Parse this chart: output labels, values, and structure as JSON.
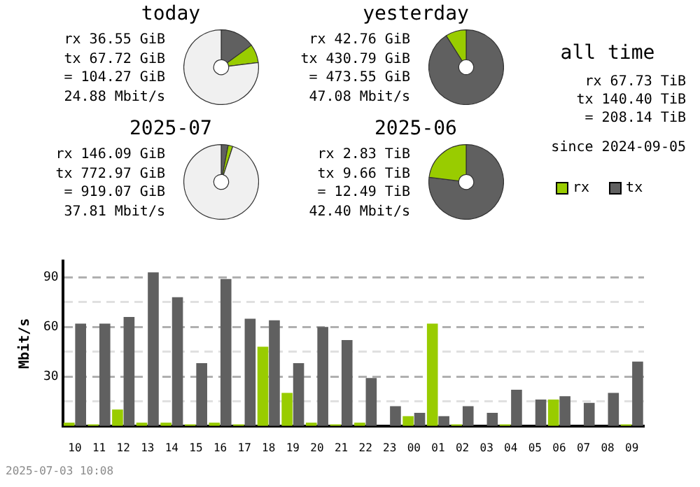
{
  "chart_data": [
    {
      "type": "donut",
      "title": "today",
      "categories": [
        null,
        null,
        null
      ],
      "values": [
        15,
        8,
        77
      ],
      "colors": [
        "#606060",
        "#99cc00",
        "#f0f0f0"
      ],
      "annotations": [
        "rx 36.55 GiB",
        "tx 67.72 GiB",
        "= 104.27 GiB",
        "24.88 Mbit/s"
      ]
    },
    {
      "type": "donut",
      "title": "yesterday",
      "categories": [
        null,
        null,
        null
      ],
      "values": [
        91,
        9,
        0
      ],
      "colors": [
        "#606060",
        "#99cc00",
        "#f0f0f0"
      ],
      "annotations": [
        "rx 42.76 GiB",
        "tx 430.79 GiB",
        "= 473.55 GiB",
        "47.08 Mbit/s"
      ]
    },
    {
      "type": "donut",
      "title": "2025-07",
      "categories": [
        null,
        null,
        null
      ],
      "values": [
        3,
        2,
        95
      ],
      "colors": [
        "#606060",
        "#99cc00",
        "#f0f0f0"
      ],
      "annotations": [
        "rx 146.09 GiB",
        "tx 772.97 GiB",
        "= 919.07 GiB",
        "37.81 Mbit/s"
      ]
    },
    {
      "type": "donut",
      "title": "2025-06",
      "categories": [
        null,
        null,
        null
      ],
      "values": [
        77,
        23,
        0
      ],
      "colors": [
        "#606060",
        "#99cc00",
        "#f0f0f0"
      ],
      "annotations": [
        "rx 2.83 TiB",
        "tx 9.66 TiB",
        "= 12.49 TiB",
        "42.40 Mbit/s"
      ]
    },
    {
      "type": "other",
      "title": "all time",
      "annotations": [
        "rx 67.73 TiB",
        "tx 140.40 TiB",
        "= 208.14 TiB",
        "since 2024-09-05"
      ]
    },
    {
      "type": "bar",
      "ylabel": "Mbit/s",
      "categories": [
        "10",
        "11",
        "12",
        "13",
        "14",
        "15",
        "16",
        "17",
        "18",
        "19",
        "20",
        "21",
        "22",
        "23",
        "00",
        "01",
        "02",
        "03",
        "04",
        "05",
        "06",
        "07",
        "08",
        "09"
      ],
      "series": [
        {
          "name": "rx",
          "color": "#99cc00",
          "values": [
            2,
            1,
            10,
            2,
            2,
            1,
            2,
            1,
            48,
            20,
            2,
            1,
            2,
            0,
            6,
            62,
            1,
            0,
            1,
            0,
            16,
            0,
            0,
            1
          ]
        },
        {
          "name": "tx",
          "color": "#606060",
          "values": [
            62,
            62,
            66,
            93,
            78,
            38,
            89,
            65,
            64,
            38,
            60,
            52,
            29,
            12,
            8,
            6,
            12,
            8,
            22,
            16,
            18,
            14,
            20,
            39
          ]
        }
      ],
      "ylim": [
        0,
        100
      ],
      "yticks": [
        {
          "value": 15,
          "label": null
        },
        30,
        {
          "value": 45,
          "label": null
        },
        60,
        {
          "value": 75,
          "label": null
        },
        90
      ],
      "grid": "y",
      "legend": "top right",
      "annotations": [
        "2025-07-03 10:08"
      ]
    }
  ]
}
